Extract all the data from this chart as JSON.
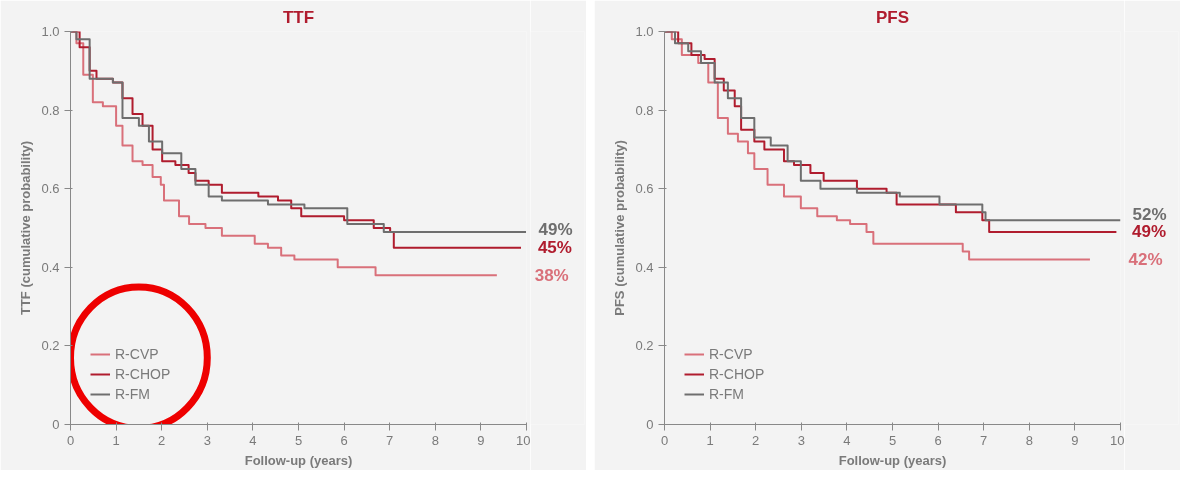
{
  "chart_data": [
    {
      "type": "step",
      "title": "TTF",
      "xlabel": "Follow-up (years)",
      "ylabel": "TTF (cumulative probability)",
      "xlim": [
        0,
        10
      ],
      "ylim": [
        0,
        1
      ],
      "xticks": [
        0,
        1,
        2,
        3,
        4,
        5,
        6,
        7,
        8,
        9,
        10
      ],
      "yticks": [
        0,
        0.2,
        0.4,
        0.6,
        0.8,
        {
          "value": 1,
          "label": "1.0"
        }
      ],
      "grid": false,
      "legend": "bottom left",
      "series": [
        {
          "name": "R-CVP",
          "color": "#d9707a",
          "x": [
            0,
            0.13,
            0.28,
            0.49,
            0.71,
            1.0,
            1.14,
            1.36,
            1.58,
            1.8,
            1.98,
            2.05,
            2.38,
            2.6,
            2.96,
            3.32,
            4.04,
            4.33,
            4.62,
            4.91,
            5.86,
            6.69,
            9.35
          ],
          "values": [
            1.0,
            0.97,
            0.89,
            0.82,
            0.81,
            0.76,
            0.71,
            0.67,
            0.66,
            0.63,
            0.61,
            0.57,
            0.53,
            0.51,
            0.5,
            0.48,
            0.46,
            0.45,
            0.43,
            0.42,
            0.4,
            0.38,
            0.38
          ]
        },
        {
          "name": "R-CHOP",
          "color": "#b01c2e",
          "x": [
            0,
            0.2,
            0.42,
            0.57,
            0.93,
            1.14,
            1.36,
            1.58,
            1.8,
            2.01,
            2.3,
            2.59,
            2.74,
            3.03,
            3.32,
            4.12,
            4.55,
            4.84,
            5.06,
            6.0,
            6.65,
            7.01,
            7.09,
            9.88
          ],
          "values": [
            1.0,
            0.96,
            0.9,
            0.88,
            0.87,
            0.83,
            0.79,
            0.76,
            0.7,
            0.67,
            0.66,
            0.64,
            0.62,
            0.61,
            0.59,
            0.58,
            0.57,
            0.55,
            0.53,
            0.52,
            0.5,
            0.49,
            0.45,
            0.45
          ]
        },
        {
          "name": "R-FM",
          "color": "#6e6e6e",
          "x": [
            0,
            0.13,
            0.42,
            0.93,
            1.14,
            1.5,
            1.72,
            2.01,
            2.43,
            2.74,
            3.03,
            3.32,
            4.33,
            5.13,
            6.07,
            6.87,
            9.99
          ],
          "values": [
            1.0,
            0.98,
            0.88,
            0.87,
            0.78,
            0.76,
            0.72,
            0.69,
            0.65,
            0.61,
            0.58,
            0.57,
            0.56,
            0.55,
            0.51,
            0.49,
            0.49
          ]
        }
      ],
      "annotations": [
        {
          "text": "38%",
          "x": 9.35,
          "y": 0.38
        },
        {
          "text": "45%",
          "x": 9.88,
          "y": 0.45
        },
        {
          "text": "49%",
          "x": 9.99,
          "y": 0.49
        }
      ]
    },
    {
      "type": "step",
      "title": "PFS",
      "xlabel": "Follow-up (years)",
      "ylabel": "PFS (cumulative probability)",
      "xlim": [
        0,
        10
      ],
      "ylim": [
        0,
        1
      ],
      "xticks": [
        0,
        1,
        2,
        3,
        4,
        5,
        6,
        7,
        8,
        9,
        10
      ],
      "yticks": [
        0,
        0.2,
        0.4,
        0.6,
        0.8,
        {
          "value": 1,
          "label": "1.0"
        }
      ],
      "grid": false,
      "legend": "bottom left",
      "series": [
        {
          "name": "R-CVP",
          "color": "#d9707a",
          "x": [
            0,
            0.16,
            0.38,
            0.74,
            0.96,
            1.17,
            1.39,
            1.61,
            1.83,
            1.97,
            2.26,
            2.62,
            2.99,
            3.35,
            3.78,
            4.07,
            4.43,
            4.58,
            6.54,
            6.68,
            9.33
          ],
          "values": [
            1.0,
            0.98,
            0.94,
            0.92,
            0.87,
            0.78,
            0.74,
            0.72,
            0.69,
            0.65,
            0.61,
            0.58,
            0.55,
            0.53,
            0.52,
            0.51,
            0.49,
            0.46,
            0.44,
            0.42,
            0.42
          ]
        },
        {
          "name": "R-CHOP",
          "color": "#b01c2e",
          "x": [
            0,
            0.3,
            0.59,
            0.88,
            1.1,
            1.3,
            1.54,
            1.68,
            1.97,
            2.19,
            2.62,
            2.84,
            3.2,
            3.49,
            4.22,
            4.87,
            5.09,
            6.39,
            6.97,
            7.12,
            9.91
          ],
          "values": [
            1.0,
            0.97,
            0.94,
            0.93,
            0.88,
            0.85,
            0.81,
            0.75,
            0.72,
            0.7,
            0.67,
            0.66,
            0.64,
            0.62,
            0.6,
            0.59,
            0.56,
            0.54,
            0.52,
            0.49,
            0.49
          ]
        },
        {
          "name": "R-FM",
          "color": "#6e6e6e",
          "x": [
            0,
            0.23,
            0.52,
            0.8,
            1.1,
            1.39,
            1.68,
            1.97,
            2.33,
            2.7,
            2.99,
            3.42,
            4.22,
            5.16,
            6.03,
            6.97,
            7.04,
            10.0
          ],
          "values": [
            1.0,
            0.97,
            0.95,
            0.92,
            0.87,
            0.83,
            0.78,
            0.73,
            0.71,
            0.67,
            0.62,
            0.6,
            0.59,
            0.58,
            0.56,
            0.54,
            0.52,
            0.52
          ]
        }
      ],
      "annotations": [
        {
          "text": "42%",
          "x": 9.33,
          "y": 0.42
        },
        {
          "text": "49%",
          "x": 9.91,
          "y": 0.49
        },
        {
          "text": "52%",
          "x": 10.0,
          "y": 0.52
        }
      ]
    }
  ]
}
